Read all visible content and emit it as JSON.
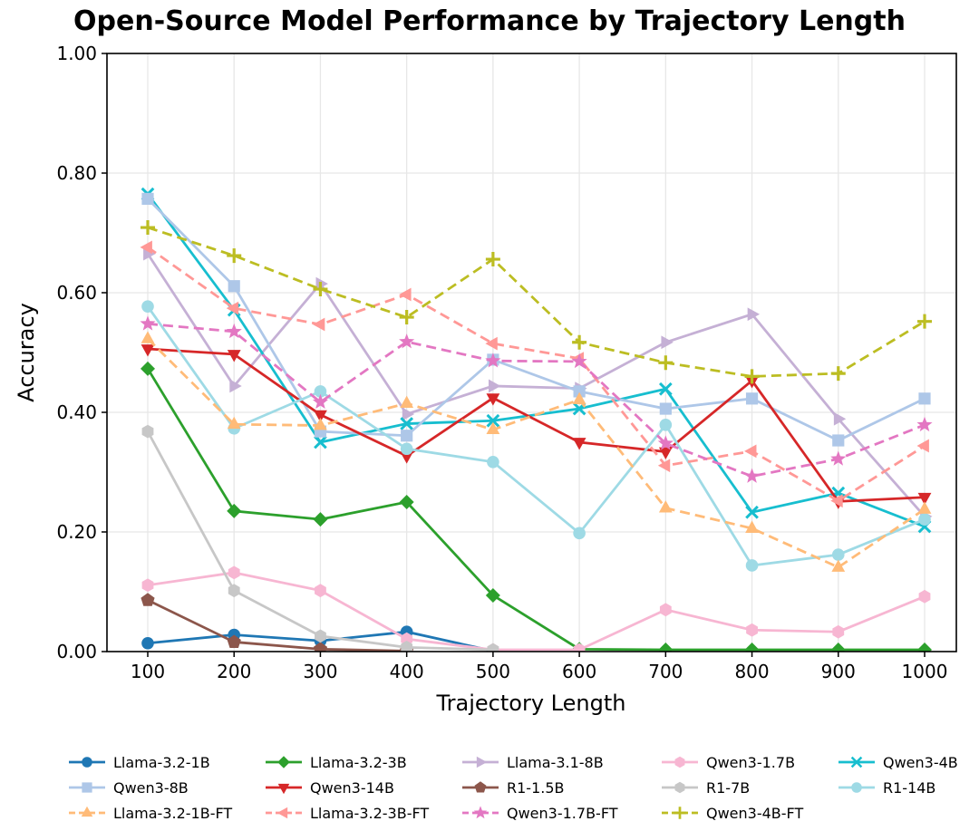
{
  "chart_data": {
    "type": "line",
    "title": "Open-Source Model Performance by Trajectory Length",
    "xlabel": "Trajectory Length",
    "ylabel": "Accuracy",
    "x": [
      100,
      200,
      300,
      400,
      500,
      600,
      700,
      800,
      900,
      1000
    ],
    "xticks": [
      "100",
      "200",
      "300",
      "400",
      "500",
      "600",
      "700",
      "800",
      "900",
      "1000"
    ],
    "yticks": [
      "0.00",
      "0.20",
      "0.40",
      "0.60",
      "0.80",
      "1.00"
    ],
    "ytick_values": [
      0.0,
      0.2,
      0.4,
      0.6,
      0.8,
      1.0
    ],
    "ylim": [
      0.0,
      1.0
    ],
    "grid": true,
    "grid_color": "#e7e7e7",
    "spine_color": "#000000",
    "legend_position": "below",
    "series": [
      {
        "name": "Llama-3.2-1B",
        "color": "#1f77b4",
        "marker": "circle",
        "linestyle": "solid",
        "values": [
          0.014,
          0.028,
          0.018,
          0.033,
          0.001,
          null,
          null,
          null,
          null,
          null
        ]
      },
      {
        "name": "Llama-3.2-3B",
        "color": "#2ca02c",
        "marker": "diamond",
        "linestyle": "solid",
        "values": [
          0.473,
          0.235,
          0.221,
          0.25,
          0.094,
          0.004,
          0.003,
          0.003,
          0.003,
          0.003
        ]
      },
      {
        "name": "Llama-3.1-8B",
        "color": "#c5b0d5",
        "marker": "triangle-right",
        "linestyle": "solid",
        "values": [
          0.665,
          0.444,
          0.615,
          0.397,
          0.444,
          0.44,
          0.517,
          0.564,
          0.389,
          0.226
        ]
      },
      {
        "name": "Qwen3-1.7B",
        "color": "#f7b6d2",
        "marker": "hexagon",
        "linestyle": "solid",
        "values": [
          0.111,
          0.132,
          0.102,
          0.021,
          0.003,
          0.003,
          0.07,
          0.036,
          0.033,
          0.092
        ]
      },
      {
        "name": "Qwen3-4B",
        "color": "#17becf",
        "marker": "x",
        "linestyle": "solid",
        "values": [
          0.765,
          0.571,
          0.35,
          0.381,
          0.386,
          0.406,
          0.439,
          0.233,
          0.265,
          0.209
        ]
      },
      {
        "name": "Qwen3-8B",
        "color": "#aec7e8",
        "marker": "square",
        "linestyle": "solid",
        "values": [
          0.757,
          0.611,
          0.368,
          0.361,
          0.488,
          0.435,
          0.406,
          0.423,
          0.353,
          0.423
        ]
      },
      {
        "name": "Qwen3-14B",
        "color": "#d62728",
        "marker": "triangle-down",
        "linestyle": "solid",
        "values": [
          0.506,
          0.497,
          0.396,
          0.327,
          0.424,
          0.35,
          0.334,
          0.453,
          0.251,
          0.258
        ]
      },
      {
        "name": "R1-1.5B",
        "color": "#8c564b",
        "marker": "pentagon",
        "linestyle": "solid",
        "values": [
          0.086,
          0.016,
          0.004,
          0.001,
          null,
          null,
          null,
          null,
          null,
          null
        ]
      },
      {
        "name": "R1-7B",
        "color": "#c7c7c7",
        "marker": "hexagon",
        "linestyle": "solid",
        "values": [
          0.368,
          0.102,
          0.026,
          0.007,
          0.003,
          null,
          null,
          null,
          null,
          null
        ]
      },
      {
        "name": "R1-14B",
        "color": "#9edae5",
        "marker": "circle",
        "linestyle": "solid",
        "values": [
          0.577,
          0.373,
          0.435,
          0.339,
          0.317,
          0.198,
          0.379,
          0.144,
          0.162,
          0.221
        ]
      },
      {
        "name": "Llama-3.2-1B-FT",
        "color": "#ffbb78",
        "marker": "triangle-up",
        "linestyle": "dashed",
        "values": [
          0.523,
          0.38,
          0.378,
          0.415,
          0.371,
          0.421,
          0.24,
          0.206,
          0.141,
          0.238
        ]
      },
      {
        "name": "Llama-3.2-3B-FT",
        "color": "#ff9896",
        "marker": "triangle-left",
        "linestyle": "dashed",
        "values": [
          0.676,
          0.574,
          0.547,
          0.597,
          0.515,
          0.49,
          0.311,
          0.335,
          0.252,
          0.344
        ]
      },
      {
        "name": "Qwen3-1.7B-FT",
        "color": "#e377c2",
        "marker": "star",
        "linestyle": "dashed",
        "values": [
          0.548,
          0.535,
          0.417,
          0.518,
          0.486,
          0.485,
          0.348,
          0.293,
          0.322,
          0.379
        ]
      },
      {
        "name": "Qwen3-4B-FT",
        "color": "#bcbd22",
        "marker": "plus",
        "linestyle": "dashed",
        "values": [
          0.709,
          0.662,
          0.606,
          0.559,
          0.656,
          0.517,
          0.483,
          0.46,
          0.465,
          0.552
        ]
      }
    ]
  }
}
